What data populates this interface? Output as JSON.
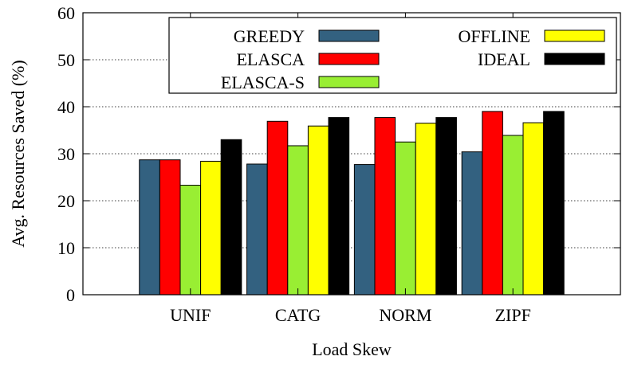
{
  "chart_data": {
    "type": "bar",
    "title": "",
    "xlabel": "Load Skew",
    "ylabel": "Avg. Resources Saved (%)",
    "ylim": [
      0,
      60
    ],
    "yticks": [
      0,
      10,
      20,
      30,
      40,
      50,
      60
    ],
    "grid": "horizontal dotted",
    "legend_position": "top-right",
    "categories": [
      "UNIF",
      "CATG",
      "NORM",
      "ZIPF"
    ],
    "series": [
      {
        "name": "GREEDY",
        "color": "#336180",
        "values": [
          28.7,
          27.8,
          27.7,
          30.4
        ]
      },
      {
        "name": "ELASCA",
        "color": "#ff0000",
        "values": [
          28.7,
          36.9,
          37.7,
          39.0
        ]
      },
      {
        "name": "ELASCA-S",
        "color": "#99ee33",
        "values": [
          23.3,
          31.7,
          32.5,
          33.9
        ]
      },
      {
        "name": "OFFLINE",
        "color": "#ffff00",
        "values": [
          28.4,
          35.9,
          36.5,
          36.6
        ]
      },
      {
        "name": "IDEAL",
        "color": "#000000",
        "values": [
          33.0,
          37.7,
          37.7,
          39.0
        ]
      }
    ]
  }
}
